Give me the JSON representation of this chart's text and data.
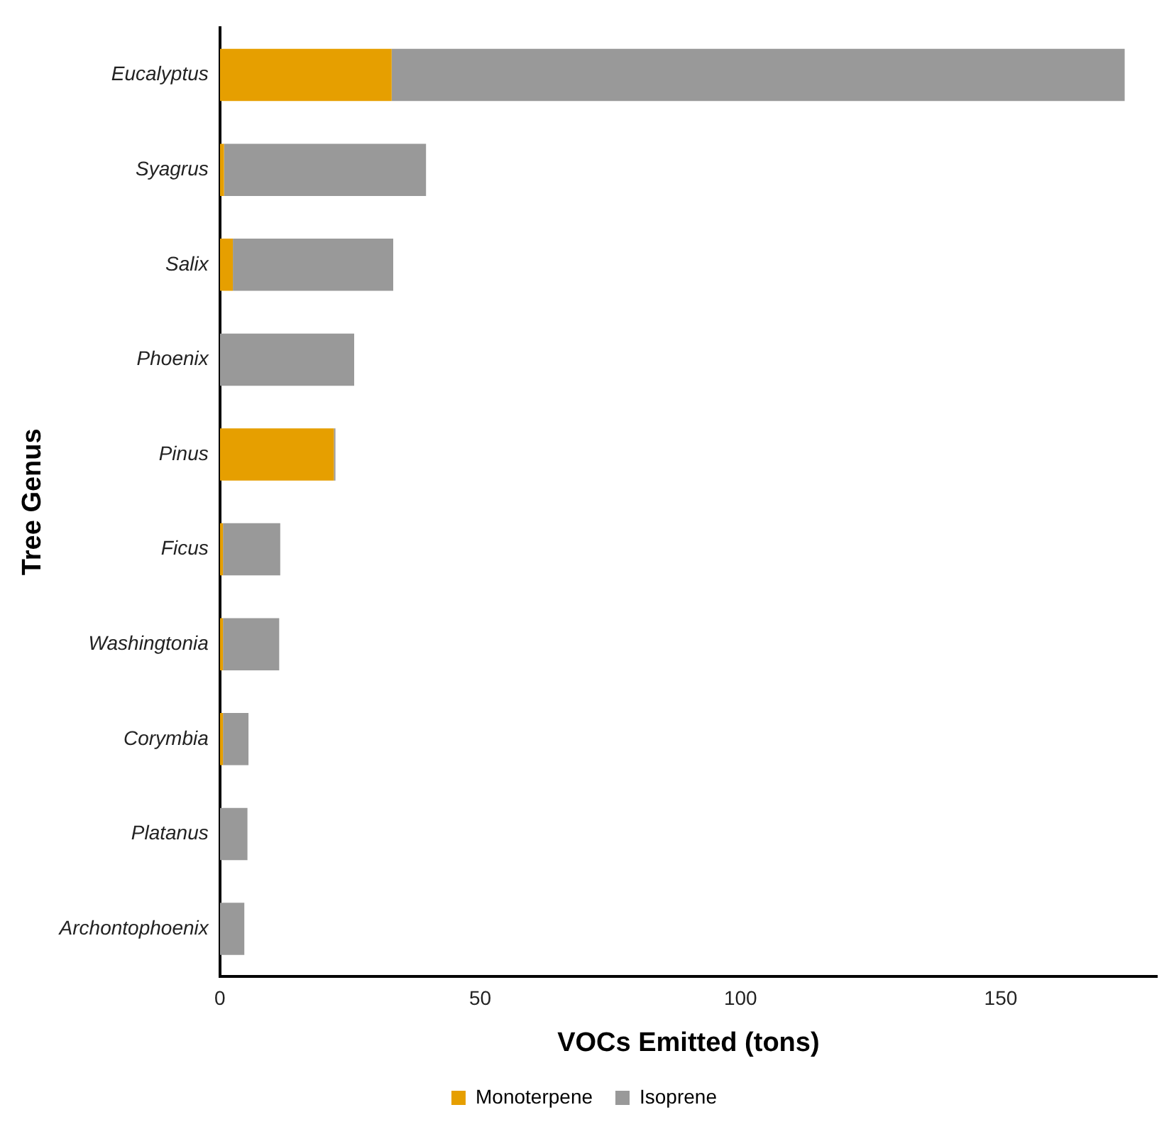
{
  "chart_data": {
    "type": "bar",
    "orientation": "horizontal",
    "stacked": true,
    "xlabel": "VOCs Emitted (tons)",
    "ylabel": "Tree Genus",
    "categories": [
      "Eucalyptus",
      "Syagrus",
      "Salix",
      "Phoenix",
      "Pinus",
      "Ficus",
      "Washingtonia",
      "Corymbia",
      "Platanus",
      "Archontophoenix"
    ],
    "series": [
      {
        "name": "Monoterpene",
        "color": "#e69f00",
        "values": [
          33.0,
          0.8,
          2.5,
          0,
          21.9,
          0.6,
          0.6,
          0.6,
          0,
          0
        ]
      },
      {
        "name": "Isoprene",
        "color": "#999999",
        "values": [
          140.8,
          38.8,
          30.8,
          25.8,
          0.3,
          11.0,
          10.8,
          4.9,
          5.3,
          4.7
        ]
      }
    ],
    "xlim": [
      0,
      180
    ],
    "xticks": [
      0,
      50,
      100,
      150
    ],
    "grid": false,
    "legend": "bottom"
  }
}
